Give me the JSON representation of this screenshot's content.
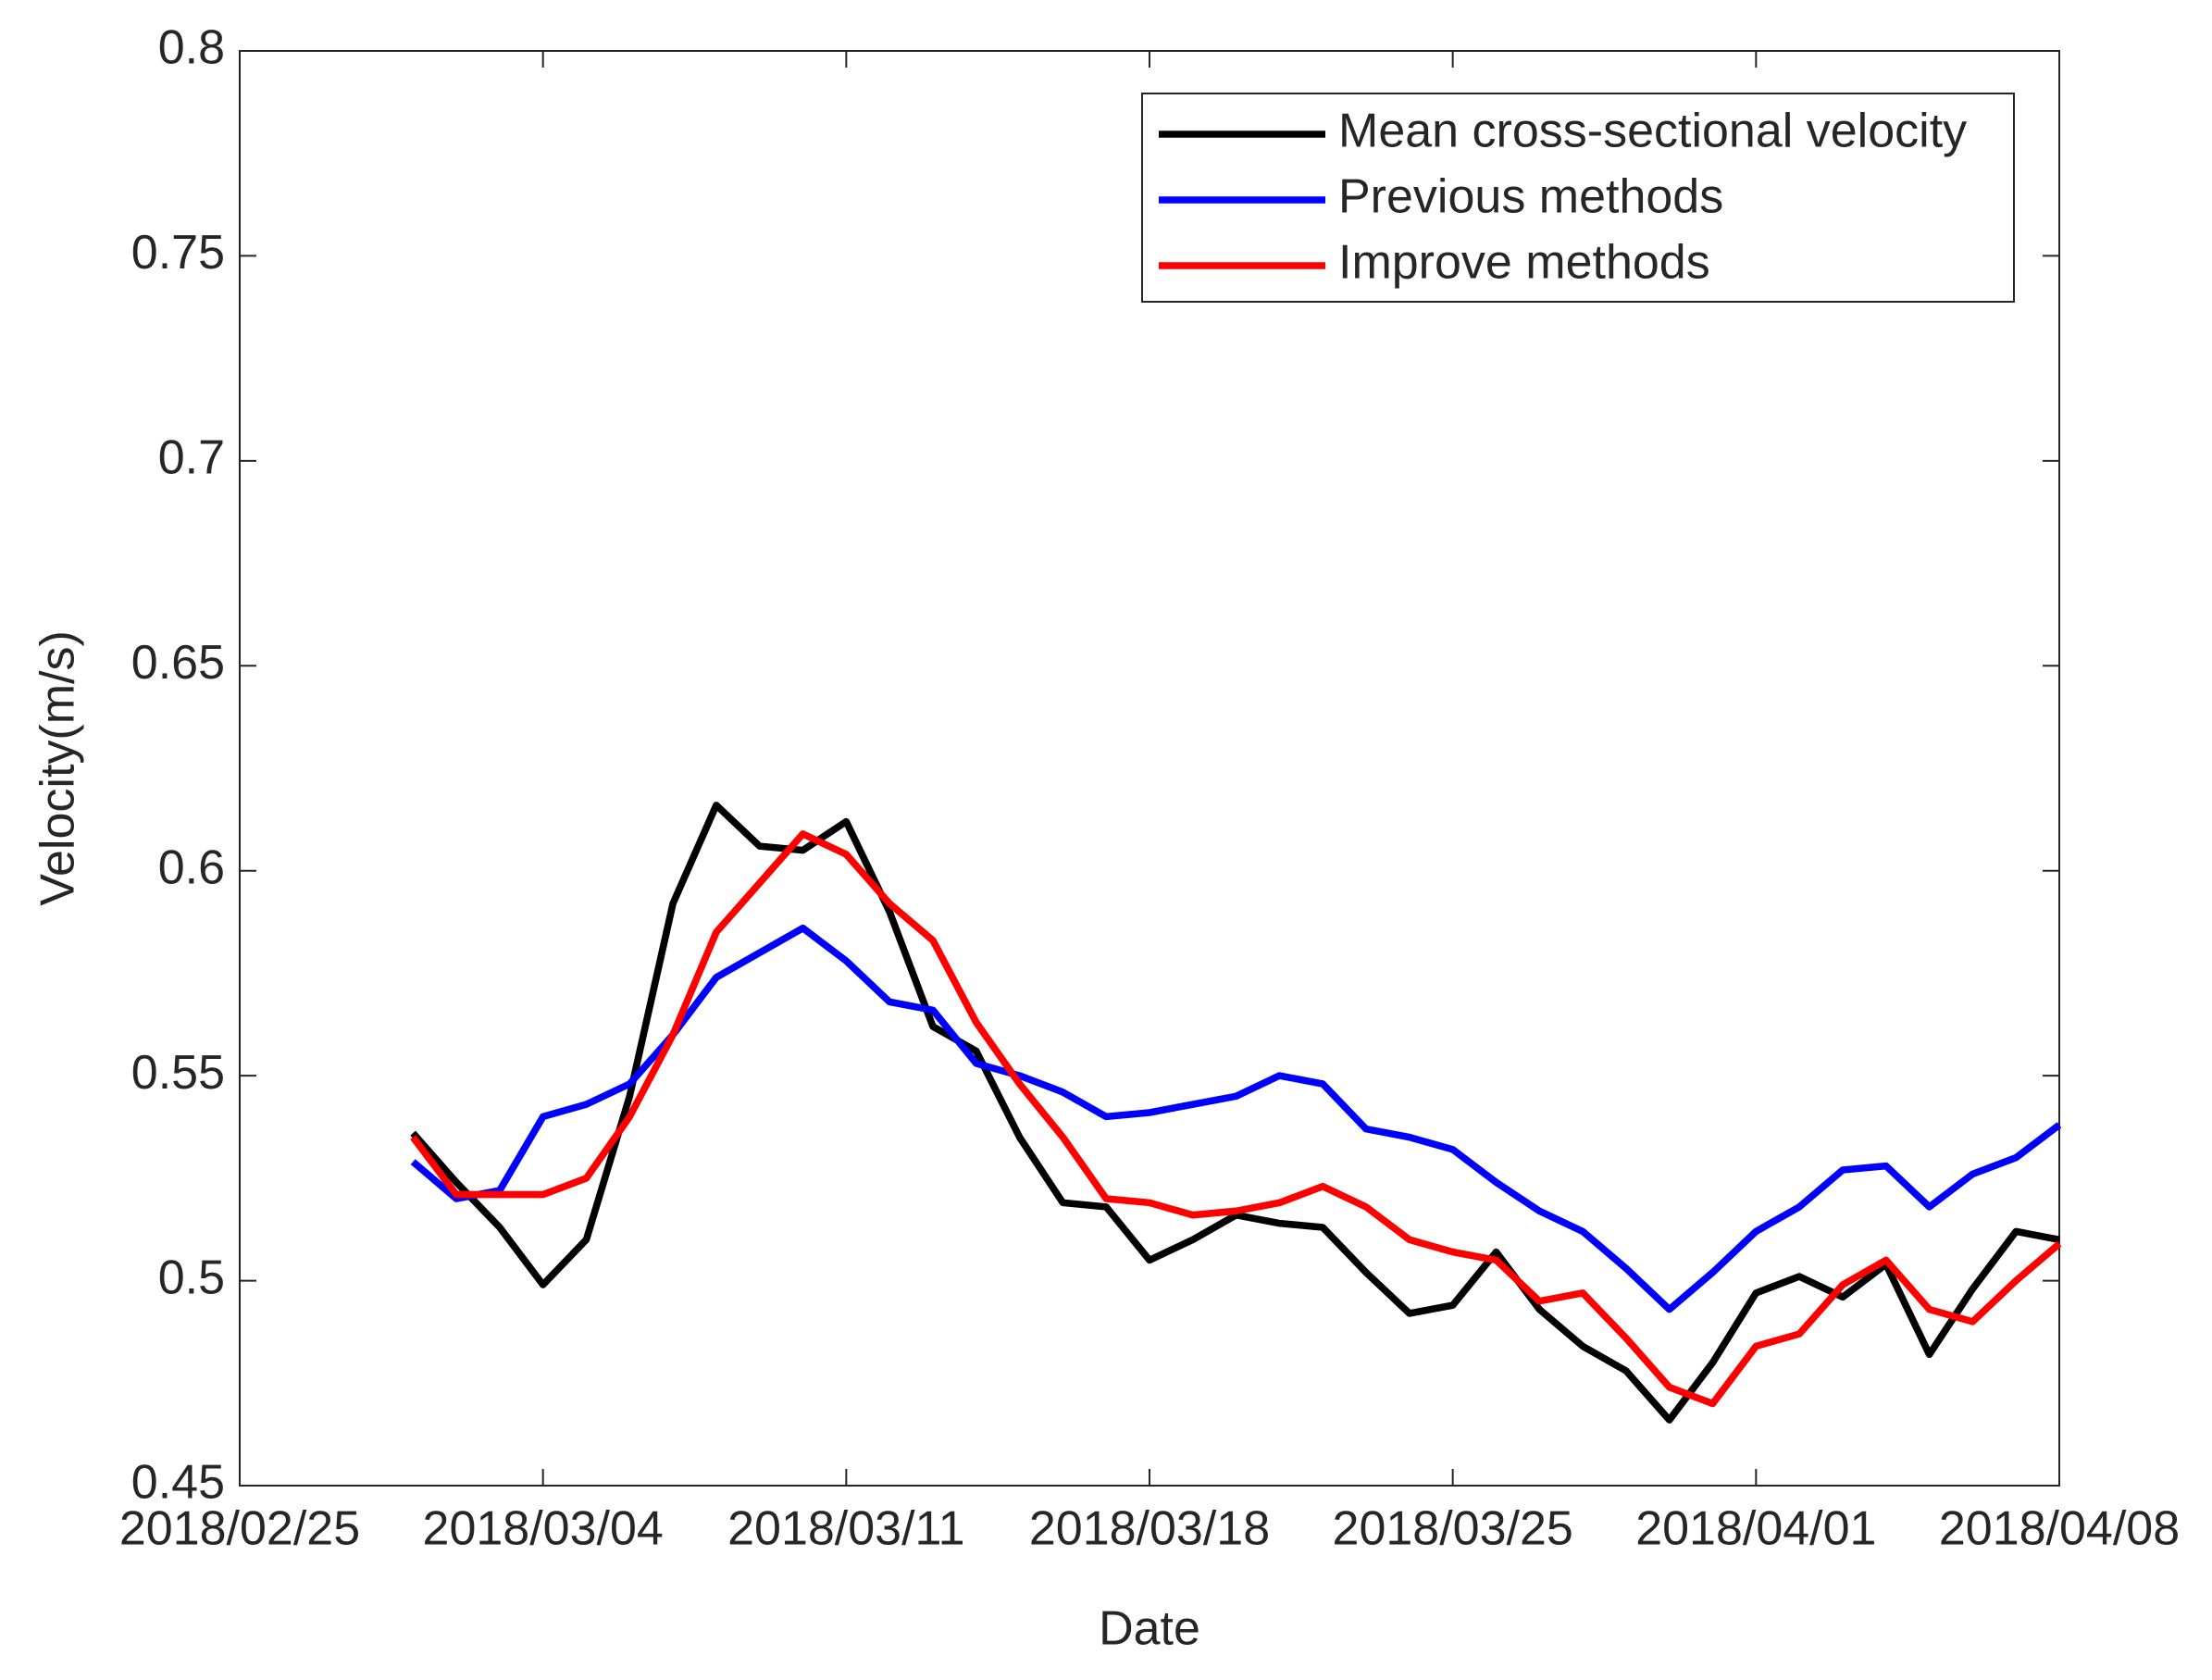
{
  "chart_data": {
    "type": "line",
    "xlabel": "Date",
    "ylabel": "Velocity(m/s)",
    "x": [
      "2018/03/01",
      "2018/03/02",
      "2018/03/03",
      "2018/03/04",
      "2018/03/05",
      "2018/03/06",
      "2018/03/07",
      "2018/03/08",
      "2018/03/09",
      "2018/03/10",
      "2018/03/11",
      "2018/03/12",
      "2018/03/13",
      "2018/03/14",
      "2018/03/15",
      "2018/03/16",
      "2018/03/17",
      "2018/03/18",
      "2018/03/19",
      "2018/03/20",
      "2018/03/21",
      "2018/03/22",
      "2018/03/23",
      "2018/03/24",
      "2018/03/25",
      "2018/03/26",
      "2018/03/27",
      "2018/03/28",
      "2018/03/29",
      "2018/03/30",
      "2018/03/31",
      "2018/04/01",
      "2018/04/02",
      "2018/04/03",
      "2018/04/04",
      "2018/04/05",
      "2018/04/06",
      "2018/04/07",
      "2018/04/08"
    ],
    "series": [
      {
        "name": "Mean cross-sectional velocity",
        "color": "#000000",
        "values": [
          0.536,
          0.524,
          0.513,
          0.499,
          0.51,
          0.545,
          0.592,
          0.616,
          0.606,
          0.605,
          0.612,
          0.59,
          0.562,
          0.556,
          0.535,
          0.519,
          0.518,
          0.505,
          0.51,
          0.516,
          0.514,
          0.513,
          0.502,
          0.492,
          0.494,
          0.507,
          0.493,
          0.484,
          0.478,
          0.466,
          0.48,
          0.497,
          0.501,
          0.496,
          0.504,
          0.482,
          0.498,
          0.512,
          0.51
        ]
      },
      {
        "name": "Previous methods",
        "color": "#0000ff",
        "values": [
          0.529,
          0.52,
          0.522,
          0.54,
          0.543,
          0.548,
          0.56,
          0.574,
          0.58,
          0.586,
          0.578,
          0.568,
          0.566,
          0.553,
          0.55,
          0.546,
          0.54,
          0.541,
          0.543,
          0.545,
          0.55,
          0.548,
          0.537,
          0.535,
          0.532,
          0.524,
          0.517,
          0.512,
          0.503,
          0.493,
          0.502,
          0.512,
          0.518,
          0.527,
          0.528,
          0.518,
          0.526,
          0.53,
          0.538
        ]
      },
      {
        "name": "Improve methods",
        "color": "#ff0000",
        "values": [
          0.535,
          0.521,
          0.521,
          0.521,
          0.525,
          0.54,
          0.56,
          0.585,
          0.597,
          0.609,
          0.604,
          0.592,
          0.583,
          0.563,
          0.548,
          0.535,
          0.52,
          0.519,
          0.516,
          0.517,
          0.519,
          0.523,
          0.518,
          0.51,
          0.507,
          0.505,
          0.495,
          0.497,
          0.486,
          0.474,
          0.47,
          0.484,
          0.487,
          0.499,
          0.505,
          0.493,
          0.49,
          0.5,
          0.509
        ]
      }
    ],
    "xlim": [
      "2018/02/25",
      "2018/04/08"
    ],
    "xticks": [
      "2018/02/25",
      "2018/03/04",
      "2018/03/11",
      "2018/03/18",
      "2018/03/25",
      "2018/04/01",
      "2018/04/08"
    ],
    "ylim": [
      0.45,
      0.8
    ],
    "yticks": [
      0.45,
      0.5,
      0.55,
      0.6,
      0.65,
      0.7,
      0.75,
      0.8
    ],
    "grid": false,
    "legend": "upper right"
  }
}
